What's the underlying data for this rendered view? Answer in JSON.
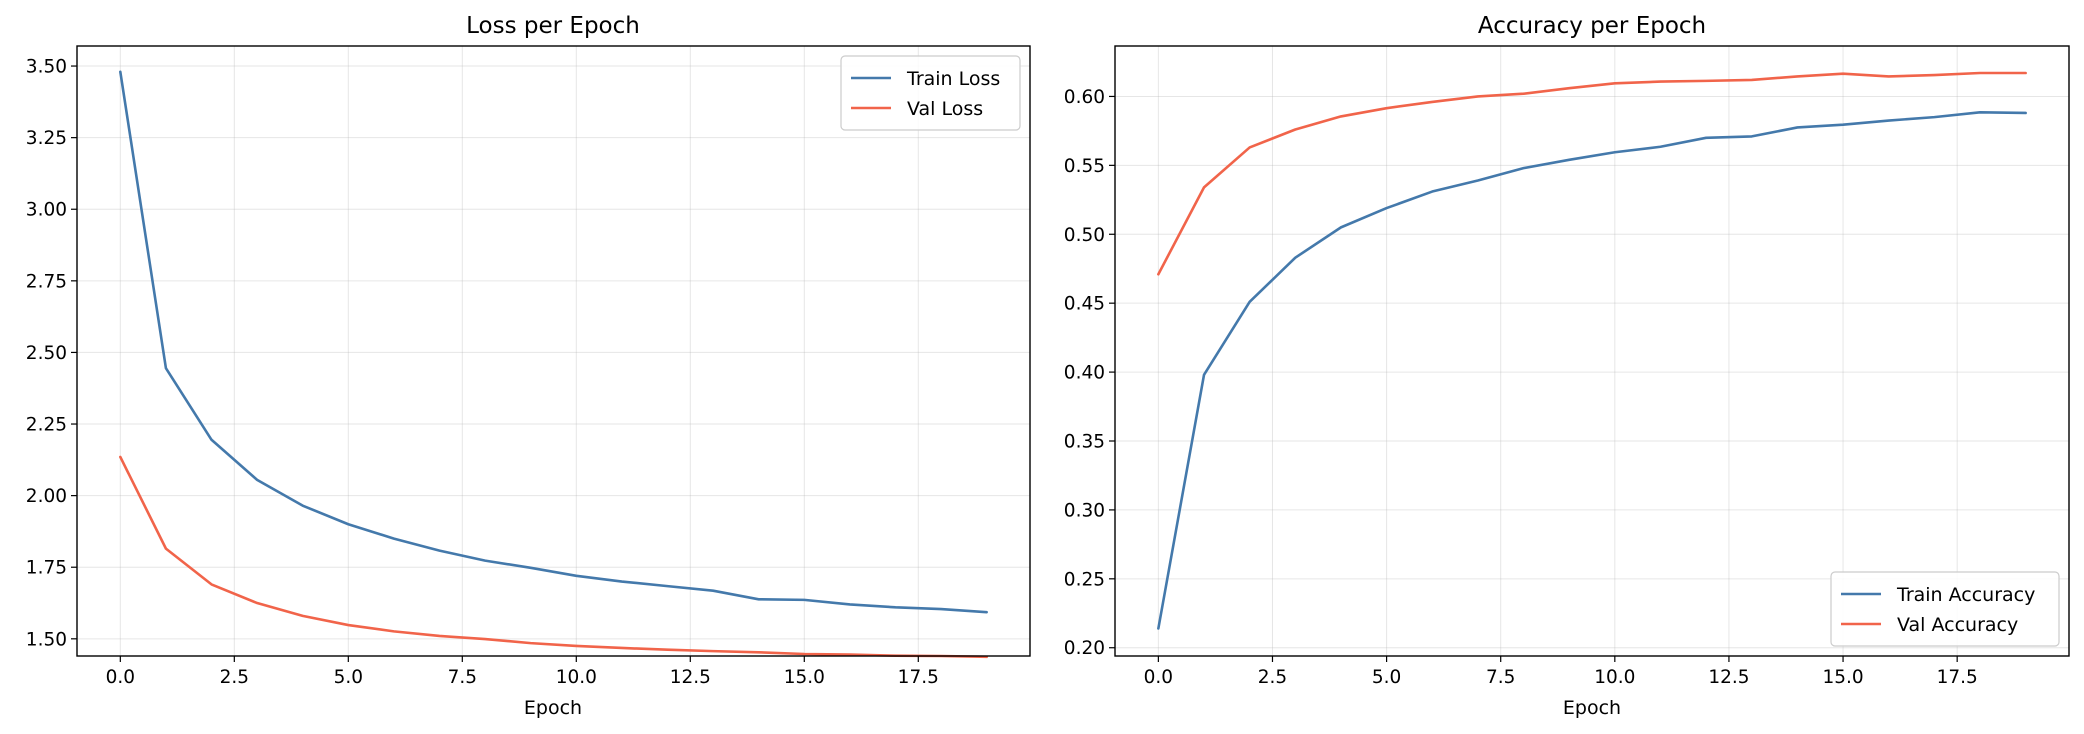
{
  "chart_data": [
    {
      "type": "line",
      "title": "Loss per Epoch",
      "xlabel": "Epoch",
      "ylabel": "",
      "xlim": [
        -0.95,
        19.95
      ],
      "ylim": [
        1.44,
        3.57
      ],
      "xticks": [
        0,
        2.5,
        5,
        7.5,
        10,
        12.5,
        15,
        17.5
      ],
      "xtick_labels": [
        "0.0",
        "2.5",
        "5.0",
        "7.5",
        "10.0",
        "12.5",
        "15.0",
        "17.5"
      ],
      "yticks": [
        1.5,
        1.75,
        2.0,
        2.25,
        2.5,
        2.75,
        3.0,
        3.25,
        3.5
      ],
      "ytick_labels": [
        "1.50",
        "1.75",
        "2.00",
        "2.25",
        "2.50",
        "2.75",
        "3.00",
        "3.25",
        "3.50"
      ],
      "grid": true,
      "legend_position": "top-right",
      "x": [
        0,
        1,
        2,
        3,
        4,
        5,
        6,
        7,
        8,
        9,
        10,
        11,
        12,
        13,
        14,
        15,
        16,
        17,
        18,
        19
      ],
      "series": [
        {
          "name": "Train Loss",
          "color": "#4479ab",
          "values": [
            3.48,
            2.445,
            2.195,
            2.055,
            1.965,
            1.9,
            1.85,
            1.808,
            1.773,
            1.748,
            1.72,
            1.7,
            1.684,
            1.668,
            1.638,
            1.636,
            1.62,
            1.61,
            1.604,
            1.593
          ]
        },
        {
          "name": "Val Loss",
          "color": "#f1644a",
          "values": [
            2.135,
            1.815,
            1.69,
            1.625,
            1.58,
            1.548,
            1.526,
            1.51,
            1.499,
            1.485,
            1.475,
            1.468,
            1.462,
            1.457,
            1.453,
            1.447,
            1.445,
            1.441,
            1.44,
            1.437
          ]
        }
      ]
    },
    {
      "type": "line",
      "title": "Accuracy per Epoch",
      "xlabel": "Epoch",
      "ylabel": "",
      "xlim": [
        -0.95,
        19.95
      ],
      "ylim": [
        0.194,
        0.6366
      ],
      "xticks": [
        0,
        2.5,
        5,
        7.5,
        10,
        12.5,
        15,
        17.5
      ],
      "xtick_labels": [
        "0.0",
        "2.5",
        "5.0",
        "7.5",
        "10.0",
        "12.5",
        "15.0",
        "17.5"
      ],
      "yticks": [
        0.2,
        0.25,
        0.3,
        0.35,
        0.4,
        0.45,
        0.5,
        0.55,
        0.6
      ],
      "ytick_labels": [
        "0.20",
        "0.25",
        "0.30",
        "0.35",
        "0.40",
        "0.45",
        "0.50",
        "0.55",
        "0.60"
      ],
      "grid": true,
      "legend_position": "bottom-right",
      "x": [
        0,
        1,
        2,
        3,
        4,
        5,
        6,
        7,
        8,
        9,
        10,
        11,
        12,
        13,
        14,
        15,
        16,
        17,
        18,
        19
      ],
      "series": [
        {
          "name": "Train Accuracy",
          "color": "#4479ab",
          "values": [
            0.214,
            0.398,
            0.451,
            0.483,
            0.505,
            0.519,
            0.531,
            0.539,
            0.548,
            0.554,
            0.5595,
            0.5635,
            0.57,
            0.571,
            0.5775,
            0.5795,
            0.5825,
            0.585,
            0.5885,
            0.588
          ]
        },
        {
          "name": "Val Accuracy",
          "color": "#f1644a",
          "values": [
            0.471,
            0.534,
            0.563,
            0.576,
            0.5855,
            0.5915,
            0.596,
            0.6,
            0.602,
            0.606,
            0.6095,
            0.6108,
            0.6113,
            0.612,
            0.6145,
            0.6165,
            0.6145,
            0.6155,
            0.617,
            0.617
          ]
        }
      ]
    }
  ]
}
